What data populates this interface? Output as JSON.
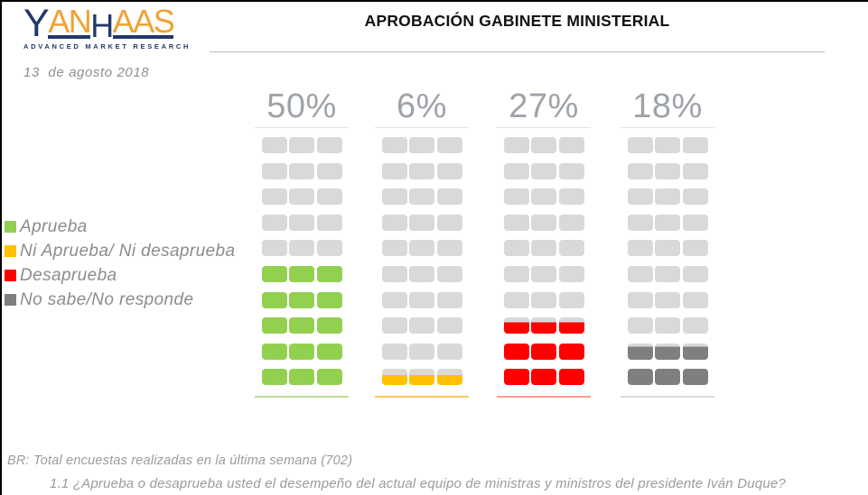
{
  "page": {
    "date": "13  de agosto 2018",
    "title": "APROBACIÓN GABINETE MINISTERIAL"
  },
  "logo": {
    "parts": [
      {
        "text": "Y"
      },
      {
        "text": "AN"
      },
      {
        "text": "H"
      },
      {
        "text": "AAS"
      }
    ],
    "tagline": "ADVANCED MARKET RESEARCH",
    "navy": "#21386b",
    "orange": "#f0a233"
  },
  "legend": {
    "items": [
      {
        "label": "Aprueba",
        "color": "#92d050"
      },
      {
        "label": "Ni Aprueba/ Ni desaprueba",
        "color": "#ffc000"
      },
      {
        "label": "Desaprueba",
        "color": "#ff0000"
      },
      {
        "label": "No sabe/No responde",
        "color": "#7f7f7f"
      }
    ]
  },
  "chart_data": {
    "type": "waffle",
    "title": "APROBACIÓN GABINETE MINISTERIAL",
    "categories": [
      "Aprueba",
      "Ni Aprueba/ Ni desaprueba",
      "Desaprueba",
      "No sabe/No responde"
    ],
    "values": [
      50,
      6,
      27,
      18
    ],
    "value_labels": [
      "50%",
      "6%",
      "27%",
      "18%"
    ],
    "colors": [
      "#92d050",
      "#ffc000",
      "#ff0000",
      "#7f7f7f"
    ],
    "baseline_colors": [
      "#b9dd94",
      "#ffc564",
      "#ff9b94",
      "#d9d9d9"
    ],
    "empty_cell_color": "#d9d9d9",
    "grid": {
      "rows": 10,
      "columns": 3,
      "row_unit_percent": 10
    },
    "legend_position": "left",
    "value_label_position": "top"
  },
  "footer": {
    "base_note": "BR: Total encuestas realizadas en la última semana (702)",
    "question": "1.1 ¿Aprueba o desaprueba usted el desempeño del actual equipo de ministras y ministros del presidente Iván Duque?"
  }
}
